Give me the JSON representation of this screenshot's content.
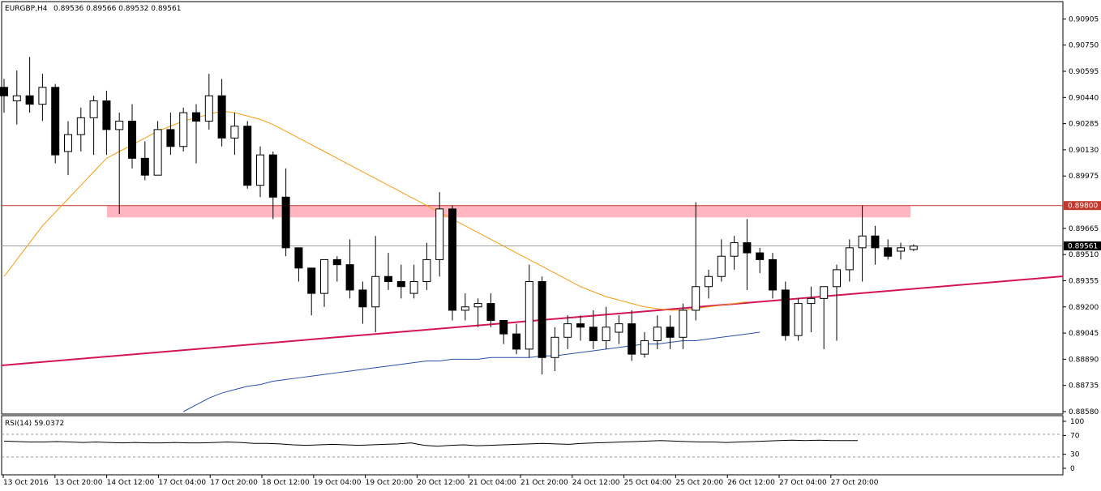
{
  "chart_data": {
    "type": "candlestick",
    "symbol_label": "EURGBP,H4",
    "ohlc_label": "0.89536 0.89566 0.89532 0.89561",
    "ylim": [
      0.8858,
      0.9095
    ],
    "y_ticks": [
      "0.90905",
      "0.90750",
      "0.90595",
      "0.90440",
      "0.90285",
      "0.90130",
      "0.89975",
      "0.89665",
      "0.89510",
      "0.89355",
      "0.89200",
      "0.89045",
      "0.88890",
      "0.88735",
      "0.88580"
    ],
    "x_ticks": [
      "13 Oct 2016",
      "13 Oct 20:00",
      "14 Oct 12:00",
      "17 Oct 04:00",
      "17 Oct 20:00",
      "18 Oct 12:00",
      "19 Oct 04:00",
      "19 Oct 20:00",
      "20 Oct 12:00",
      "21 Oct 04:00",
      "21 Oct 20:00",
      "24 Oct 12:00",
      "25 Oct 04:00",
      "25 Oct 20:00",
      "26 Oct 12:00",
      "27 Oct 04:00",
      "27 Oct 20:00"
    ],
    "resistance": {
      "label": "0.89800",
      "value": 0.898,
      "color": "#c0392b"
    },
    "current": {
      "label": "0.89561",
      "value": 0.89561
    },
    "zone": {
      "from": 0.8973,
      "to": 0.898,
      "color": "#ffb6c1"
    },
    "candles": [
      [
        0.905,
        0.9055,
        0.9035,
        0.9045
      ],
      [
        0.9042,
        0.906,
        0.9028,
        0.9045
      ],
      [
        0.9045,
        0.9068,
        0.9035,
        0.904
      ],
      [
        0.904,
        0.9058,
        0.903,
        0.905
      ],
      [
        0.905,
        0.9052,
        0.9005,
        0.901
      ],
      [
        0.9012,
        0.903,
        0.8998,
        0.9022
      ],
      [
        0.9022,
        0.9038,
        0.9012,
        0.9032
      ],
      [
        0.9032,
        0.9045,
        0.901,
        0.9042
      ],
      [
        0.9042,
        0.9048,
        0.901,
        0.9025
      ],
      [
        0.9025,
        0.9035,
        0.8975,
        0.903
      ],
      [
        0.903,
        0.904,
        0.9002,
        0.9008
      ],
      [
        0.9008,
        0.9018,
        0.8995,
        0.8998
      ],
      [
        0.8998,
        0.903,
        0.8998,
        0.9025
      ],
      [
        0.9025,
        0.9035,
        0.901,
        0.9015
      ],
      [
        0.9015,
        0.9038,
        0.9012,
        0.9035
      ],
      [
        0.9035,
        0.904,
        0.9005,
        0.903
      ],
      [
        0.903,
        0.9058,
        0.9025,
        0.9045
      ],
      [
        0.9045,
        0.9055,
        0.9015,
        0.902
      ],
      [
        0.902,
        0.9035,
        0.901,
        0.9027
      ],
      [
        0.9027,
        0.903,
        0.899,
        0.8992
      ],
      [
        0.8992,
        0.9015,
        0.8985,
        0.901
      ],
      [
        0.901,
        0.9012,
        0.8972,
        0.8985
      ],
      [
        0.8985,
        0.9002,
        0.895,
        0.8955
      ],
      [
        0.8955,
        0.8955,
        0.8935,
        0.8943
      ],
      [
        0.8943,
        0.8943,
        0.8915,
        0.8928
      ],
      [
        0.8928,
        0.8948,
        0.892,
        0.8948
      ],
      [
        0.8948,
        0.895,
        0.8935,
        0.8945
      ],
      [
        0.8945,
        0.896,
        0.8925,
        0.893
      ],
      [
        0.893,
        0.8935,
        0.891,
        0.892
      ],
      [
        0.892,
        0.8962,
        0.8905,
        0.8938
      ],
      [
        0.8938,
        0.8952,
        0.893,
        0.8935
      ],
      [
        0.8935,
        0.8945,
        0.8925,
        0.8932
      ],
      [
        0.8928,
        0.8945,
        0.8925,
        0.8935
      ],
      [
        0.8935,
        0.8958,
        0.893,
        0.8948
      ],
      [
        0.8948,
        0.8988,
        0.8938,
        0.8978
      ],
      [
        0.8978,
        0.898,
        0.8912,
        0.8918
      ],
      [
        0.8918,
        0.8928,
        0.8912,
        0.892
      ],
      [
        0.892,
        0.8925,
        0.8908,
        0.8922
      ],
      [
        0.8922,
        0.8928,
        0.8908,
        0.8912
      ],
      [
        0.8912,
        0.8912,
        0.8898,
        0.8904
      ],
      [
        0.8904,
        0.891,
        0.8892,
        0.8895
      ],
      [
        0.8895,
        0.8945,
        0.889,
        0.8935
      ],
      [
        0.8935,
        0.8938,
        0.888,
        0.889
      ],
      [
        0.889,
        0.8908,
        0.8882,
        0.8902
      ],
      [
        0.8902,
        0.8915,
        0.8895,
        0.891
      ],
      [
        0.891,
        0.8915,
        0.89,
        0.8908
      ],
      [
        0.8908,
        0.8918,
        0.8895,
        0.89
      ],
      [
        0.89,
        0.892,
        0.8895,
        0.8908
      ],
      [
        0.8905,
        0.8915,
        0.8898,
        0.891
      ],
      [
        0.891,
        0.8918,
        0.8888,
        0.8892
      ],
      [
        0.8892,
        0.8905,
        0.889,
        0.89
      ],
      [
        0.89,
        0.8915,
        0.8895,
        0.8908
      ],
      [
        0.8908,
        0.8915,
        0.8895,
        0.8902
      ],
      [
        0.8902,
        0.8922,
        0.8895,
        0.8918
      ],
      [
        0.8918,
        0.8982,
        0.8912,
        0.8932
      ],
      [
        0.8932,
        0.8942,
        0.8925,
        0.8938
      ],
      [
        0.8938,
        0.896,
        0.8935,
        0.895
      ],
      [
        0.895,
        0.8962,
        0.8942,
        0.8958
      ],
      [
        0.8958,
        0.8972,
        0.893,
        0.8952
      ],
      [
        0.8952,
        0.8955,
        0.894,
        0.8948
      ],
      [
        0.8948,
        0.8952,
        0.8925,
        0.893
      ],
      [
        0.893,
        0.8935,
        0.89,
        0.8903
      ],
      [
        0.8903,
        0.8925,
        0.89,
        0.8922
      ],
      [
        0.8922,
        0.8932,
        0.8905,
        0.8925
      ],
      [
        0.8925,
        0.893,
        0.8895,
        0.8932
      ],
      [
        0.8932,
        0.8945,
        0.89,
        0.8942
      ],
      [
        0.8942,
        0.896,
        0.8935,
        0.8955
      ],
      [
        0.8955,
        0.898,
        0.8935,
        0.8962
      ],
      [
        0.8962,
        0.8968,
        0.8945,
        0.8955
      ],
      [
        0.8955,
        0.896,
        0.8948,
        0.895
      ],
      [
        0.8953,
        0.8958,
        0.8948,
        0.8955
      ],
      [
        0.8954,
        0.8957,
        0.8953,
        0.8956
      ]
    ],
    "ma_fast": [
      0.8938,
      0.8948,
      0.8958,
      0.8968,
      0.8976,
      0.8984,
      0.8992,
      0.9,
      0.9008,
      0.9012,
      0.9016,
      0.902,
      0.9024,
      0.9027,
      0.903,
      0.9032,
      0.9034,
      0.9036,
      0.9035,
      0.9033,
      0.9031,
      0.9028,
      0.9024,
      0.902,
      0.9016,
      0.9012,
      0.9008,
      0.9004,
      0.9,
      0.8996,
      0.8992,
      0.8988,
      0.8984,
      0.898,
      0.8976,
      0.8972,
      0.8968,
      0.8964,
      0.896,
      0.8956,
      0.8952,
      0.8948,
      0.8944,
      0.894,
      0.8936,
      0.8932,
      0.8929,
      0.8926,
      0.8924,
      0.8922,
      0.892,
      0.8919,
      0.8918,
      0.8918,
      0.8919,
      0.892,
      0.8921,
      0.8922,
      0.8923
    ],
    "ma_slow": [
      0.8858,
      0.8862,
      0.8866,
      0.8869,
      0.8871,
      0.8873,
      0.8874,
      0.8876,
      0.8877,
      0.8878,
      0.8879,
      0.888,
      0.8881,
      0.8882,
      0.8883,
      0.8884,
      0.8885,
      0.8886,
      0.8887,
      0.8888,
      0.8888,
      0.8889,
      0.8889,
      0.8889,
      0.889,
      0.889,
      0.889,
      0.889,
      0.8891,
      0.8891,
      0.8892,
      0.8893,
      0.8894,
      0.8895,
      0.8896,
      0.8897,
      0.8898,
      0.8898,
      0.8899,
      0.89,
      0.89,
      0.8901,
      0.8902,
      0.8903,
      0.8904,
      0.8905
    ],
    "rsi": {
      "label": "RSI(14) 59.0372",
      "levels": [
        "100",
        "70",
        "30",
        "0"
      ],
      "values": [
        58,
        57,
        56,
        56,
        57,
        56,
        55,
        56,
        55,
        54,
        55,
        54,
        54,
        55,
        54,
        54,
        55,
        56,
        55,
        53,
        53,
        52,
        50,
        49,
        50,
        51,
        50,
        49,
        50,
        51,
        52,
        54,
        49,
        47,
        49,
        50,
        48,
        49,
        50,
        51,
        52,
        53,
        52,
        51,
        53,
        54,
        55,
        56,
        57,
        58,
        59,
        58,
        57,
        56,
        56,
        55,
        56,
        57,
        58,
        59,
        60,
        59,
        60,
        59,
        59,
        59
      ]
    }
  }
}
